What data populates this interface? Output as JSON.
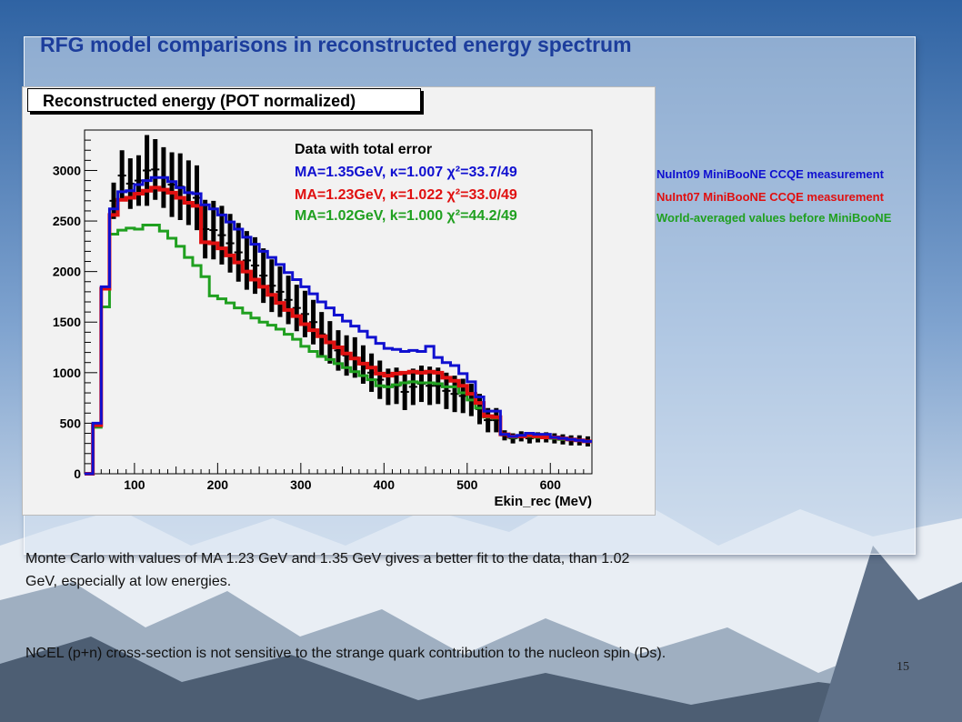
{
  "slide": {
    "title": "RFG model comparisons in reconstructed energy spectrum",
    "body_line_1": "Monte Carlo with values of MA 1.23 GeV and 1.35 GeV gives a better fit to the data, than 1.02",
    "body_line_2": "GeV, especially at low energies.",
    "body_line_3": "NCEL (p+n) cross-section is not sensitive to the strange quark contribution to the nucleon spin (Ds).",
    "page_number": "15"
  },
  "legend": {
    "data_label": "Data with total error",
    "blue_label": "MA=1.35GeV, κ=1.007   χ²=33.7/49",
    "red_label": "MA=1.23GeV, κ=1.022   χ²=33.0/49",
    "green_label": "MA=1.02GeV, k=1.000   χ²=44.2/49"
  },
  "annotations": {
    "blue": "NuInt09 MiniBooNE CCQE measurement",
    "red": "NuInt07 MiniBooNE CCQE measurement",
    "green": "World-averaged values before MiniBooNE"
  },
  "colors": {
    "blue": "#1010d0",
    "red": "#e01010",
    "green": "#20a020",
    "data": "#000000"
  },
  "chart_data": {
    "type": "line",
    "title": "Reconstructed energy (POT normalized)",
    "xlabel": "Ekin_rec (MeV)",
    "ylabel": "",
    "xlim": [
      40,
      650
    ],
    "ylim": [
      0,
      3400
    ],
    "xticks": [
      100,
      200,
      300,
      400,
      500,
      600
    ],
    "yticks": [
      0,
      500,
      1000,
      1500,
      2000,
      2500,
      3000
    ],
    "bin_edges": [
      40,
      50,
      60,
      70,
      80,
      90,
      100,
      110,
      120,
      130,
      140,
      150,
      160,
      170,
      180,
      190,
      200,
      210,
      220,
      230,
      240,
      250,
      260,
      270,
      280,
      290,
      300,
      310,
      320,
      330,
      340,
      350,
      360,
      370,
      380,
      390,
      400,
      410,
      420,
      430,
      440,
      450,
      460,
      470,
      480,
      490,
      500,
      510,
      520,
      530,
      540,
      550,
      560,
      570,
      580,
      590,
      600,
      610,
      620,
      630,
      640,
      650
    ],
    "series": [
      {
        "name": "MA=1.35GeV, κ=1.007",
        "color": "blue",
        "values": [
          0,
          500,
          1850,
          2620,
          2790,
          2800,
          2860,
          2900,
          2930,
          2930,
          2890,
          2830,
          2780,
          2770,
          2660,
          2620,
          2560,
          2490,
          2420,
          2340,
          2270,
          2200,
          2140,
          2070,
          1990,
          1920,
          1850,
          1780,
          1700,
          1640,
          1570,
          1510,
          1460,
          1410,
          1350,
          1290,
          1240,
          1230,
          1210,
          1220,
          1210,
          1260,
          1150,
          1100,
          1070,
          990,
          910,
          760,
          620,
          620,
          390,
          370,
          380,
          400,
          390,
          390,
          360,
          350,
          340,
          330,
          320
        ]
      },
      {
        "name": "MA=1.23GeV, κ=1.022",
        "color": "red",
        "values": [
          0,
          480,
          1830,
          2560,
          2710,
          2730,
          2770,
          2800,
          2830,
          2810,
          2780,
          2730,
          2680,
          2650,
          2290,
          2280,
          2230,
          2160,
          2090,
          2000,
          1920,
          1850,
          1770,
          1690,
          1620,
          1560,
          1480,
          1420,
          1360,
          1300,
          1250,
          1190,
          1140,
          1090,
          1050,
          990,
          970,
          990,
          1000,
          1010,
          1000,
          1010,
          1000,
          950,
          920,
          870,
          790,
          700,
          570,
          560,
          390,
          370,
          370,
          380,
          370,
          360,
          360,
          350,
          340,
          330,
          320
        ]
      },
      {
        "name": "MA=1.02GeV, k=1.000",
        "color": "green",
        "values": [
          0,
          460,
          1650,
          2370,
          2410,
          2430,
          2420,
          2460,
          2460,
          2400,
          2330,
          2250,
          2140,
          2060,
          1950,
          1760,
          1730,
          1690,
          1640,
          1590,
          1540,
          1500,
          1470,
          1430,
          1380,
          1330,
          1260,
          1210,
          1160,
          1130,
          1090,
          1050,
          1010,
          970,
          930,
          870,
          860,
          880,
          900,
          910,
          900,
          900,
          890,
          860,
          860,
          800,
          730,
          650,
          560,
          550,
          390,
          360,
          370,
          370,
          360,
          360,
          350,
          340,
          340,
          330,
          320
        ]
      },
      {
        "name": "Data with total error",
        "color": "data",
        "type": "errorbar",
        "values": [
          0,
          500,
          1830,
          2700,
          2950,
          2870,
          2900,
          3000,
          3010,
          2930,
          2860,
          2840,
          2780,
          2730,
          2420,
          2410,
          2360,
          2280,
          2190,
          2110,
          2060,
          1960,
          1860,
          1800,
          1720,
          1640,
          1580,
          1500,
          1380,
          1300,
          1220,
          1170,
          1150,
          1080,
          1000,
          930,
          860,
          870,
          810,
          860,
          890,
          870,
          870,
          820,
          790,
          770,
          730,
          640,
          530,
          530,
          380,
          350,
          370,
          350,
          360,
          360,
          350,
          340,
          330,
          330,
          320
        ],
        "errors": [
          0,
          0,
          0,
          180,
          250,
          250,
          250,
          350,
          300,
          300,
          320,
          330,
          320,
          320,
          290,
          290,
          290,
          290,
          290,
          290,
          280,
          270,
          260,
          250,
          240,
          230,
          230,
          220,
          220,
          210,
          200,
          200,
          200,
          190,
          190,
          190,
          180,
          180,
          180,
          180,
          180,
          190,
          180,
          180,
          180,
          170,
          160,
          150,
          120,
          120,
          50,
          50,
          50,
          50,
          50,
          50,
          50,
          50,
          50,
          50,
          50
        ]
      }
    ]
  }
}
